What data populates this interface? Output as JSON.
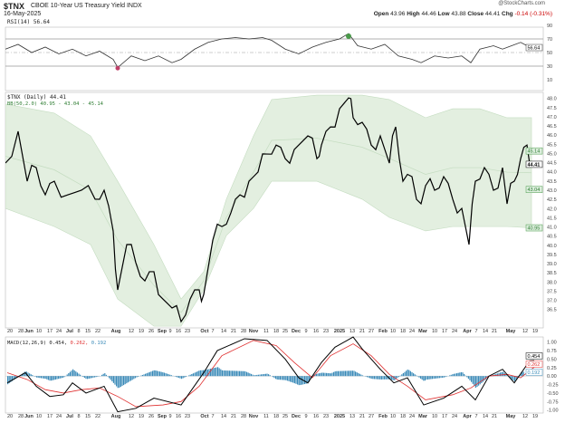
{
  "header": {
    "symbol": "$TNX",
    "name": "CBOE 10-Year US Treasury Yield INDX",
    "date": "16-May-2025",
    "source": "@StockCharts.com",
    "ohlc": [
      {
        "k": "Open",
        "v": "43.96"
      },
      {
        "k": "High",
        "v": "44.46"
      },
      {
        "k": "Low",
        "v": "43.88"
      },
      {
        "k": "Close",
        "v": "44.41"
      },
      {
        "k": "Chg",
        "v": "-0.14 (-0.31%)"
      }
    ]
  },
  "colors": {
    "price": "#000000",
    "band_fill": "#e3efe0",
    "band_line": "#c4dcc0",
    "rsi": "#333333",
    "macd": "#000000",
    "signal": "#e03030",
    "hist": "#3a8ab8",
    "green_label": "#2e7d32"
  },
  "chart_data": [
    {
      "type": "line",
      "title": "RSI(14) 56.64",
      "legend": "RSI(14) 56.64",
      "current": "56.64",
      "ylim": [
        0,
        100
      ],
      "yticks": [
        "90",
        "70",
        "50",
        "30",
        "10"
      ],
      "values": [
        55,
        62,
        50,
        58,
        48,
        55,
        45,
        52,
        40,
        28,
        45,
        38,
        45,
        35,
        40,
        55,
        65,
        70,
        72,
        70,
        72,
        68,
        55,
        48,
        58,
        65,
        70,
        78,
        60,
        55,
        62,
        45,
        40,
        35,
        45,
        42,
        45,
        35,
        55,
        60,
        55,
        60,
        65,
        58
      ]
    },
    {
      "type": "line",
      "title": "$TNX (Daily) 44.41",
      "legend": "$TNX (Daily) 44.41",
      "bb_legend": "BB(50,2.0) 40.95 - 43.04 - 45.14",
      "ylim": [
        36.5,
        48.0
      ],
      "yticks": [
        "48.0",
        "47.5",
        "47.0",
        "46.5",
        "46.0",
        "45.5",
        "45.0",
        "44.5",
        "44.0",
        "43.5",
        "43.0",
        "42.5",
        "42.0",
        "41.5",
        "41.0",
        "40.5",
        "40.0",
        "39.5",
        "39.0",
        "38.5",
        "38.0",
        "37.5",
        "37.0",
        "36.5"
      ],
      "close": [
        44.48,
        46.21,
        43.49,
        44.23,
        42.75,
        43.49,
        42.75,
        43.0,
        42.51,
        43.0,
        40.78,
        37.57,
        40.04,
        39.05,
        38.06,
        38.56,
        37.07,
        36.58,
        35.84,
        37.07,
        37.57,
        37.32,
        40.28,
        41.02,
        41.77,
        42.75,
        43.49,
        43.99,
        44.97,
        45.46,
        44.72,
        45.22,
        45.96,
        44.72,
        45.46,
        46.45,
        47.44,
        48.03,
        46.95,
        46.7,
        45.46,
        45.96,
        44.48,
        46.45,
        43.49,
        43.74,
        42.26,
        43.25,
        43.0,
        43.74,
        42.51,
        42.01,
        40.04,
        43.49,
        44.23,
        43.0,
        44.23,
        42.26,
        43.49,
        44.72,
        45.46,
        44.41
      ],
      "bb_upper": [
        47.69,
        47.2,
        45.96,
        43.49,
        40.04,
        37.07,
        38.56,
        42.51,
        45.96,
        47.94,
        48.18,
        48.18,
        47.94,
        46.95,
        47.44,
        47.44,
        46.95,
        46.95
      ],
      "bb_lower": [
        42.01,
        41.02,
        40.04,
        37.07,
        35.59,
        35.59,
        37.57,
        40.53,
        42.01,
        43.49,
        43.49,
        42.51,
        41.52,
        40.78,
        41.02,
        41.02,
        41.02,
        40.95
      ],
      "badges": [
        {
          "v": "45.14",
          "kind": "green"
        },
        {
          "v": "44.41",
          "kind": "black"
        },
        {
          "v": "43.04",
          "kind": "green"
        },
        {
          "v": "40.95",
          "kind": "green"
        }
      ]
    },
    {
      "type": "line",
      "title": "MACD(12,26,9)",
      "legend_name": "MACD(12,26,9) 0.454,",
      "legend_signal": "0.262,",
      "legend_hist": "0.192",
      "ylim": [
        -1.1,
        1.1
      ],
      "yticks": [
        "1.00",
        "0.75",
        "0.50",
        "0.25",
        "0.00",
        "-0.25",
        "-0.50",
        "-0.75",
        "-1.00"
      ],
      "macd": [
        -0.2,
        0.1,
        -0.3,
        -0.6,
        -0.55,
        -0.2,
        -0.5,
        -0.3,
        -1.05,
        -0.95,
        -0.65,
        -0.85,
        0.1,
        0.75,
        1.1,
        1.05,
        0.5,
        -0.05,
        -0.2,
        0.4,
        0.85,
        1.15,
        0.8,
        0.2,
        -0.2,
        -0.05,
        -0.85,
        -0.65,
        -0.3,
        -0.7,
        0.0,
        0.2,
        -0.2,
        0.45,
        0.454
      ],
      "signal": [
        0.1,
        -0.1,
        -0.4,
        -0.5,
        -0.4,
        -0.35,
        -0.6,
        -0.9,
        -0.85,
        -0.75,
        -0.3,
        0.6,
        1.05,
        0.9,
        0.4,
        -0.05,
        0.6,
        0.95,
        0.6,
        0.05,
        -0.3,
        -0.7,
        -0.55,
        -0.35,
        0.0,
        0.05,
        -0.05,
        0.262
      ],
      "badges": [
        "0.454",
        "0.262",
        "0.192"
      ]
    }
  ],
  "x_axis": [
    "20",
    "28",
    "Jun",
    "10",
    "17",
    "24",
    "Jul",
    "8",
    "15",
    "22",
    "Aug",
    "12",
    "19",
    "26",
    "Sep",
    "9",
    "16",
    "23",
    "Oct",
    "7",
    "14",
    "21",
    "28",
    "Nov",
    "11",
    "18",
    "25",
    "Dec",
    "9",
    "16",
    "23",
    "2025",
    "13",
    "21",
    "27",
    "Feb",
    "10",
    "18",
    "24",
    "Mar",
    "10",
    "17",
    "24",
    "Apr",
    "7",
    "14",
    "21",
    "May",
    "12",
    "19"
  ]
}
